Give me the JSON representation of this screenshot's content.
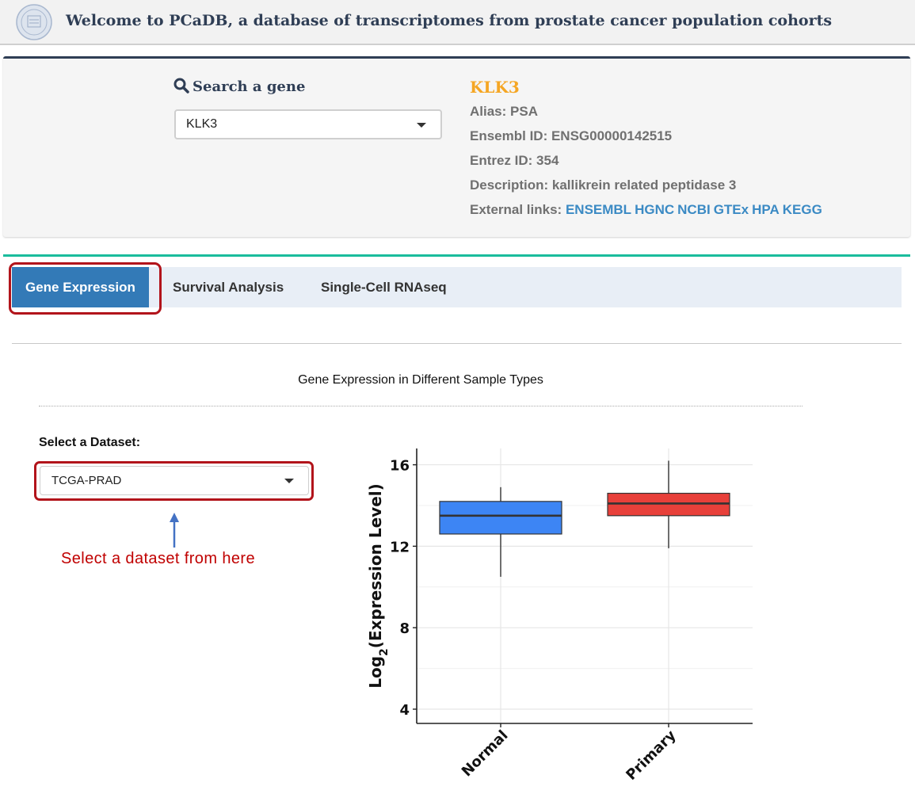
{
  "header": {
    "logo_icon": "university-seal-icon",
    "title": "Welcome to PCaDB, a database of transcriptomes from prostate cancer population cohorts"
  },
  "search": {
    "label": "Search a gene",
    "icon": "search-icon",
    "selected_gene": "KLK3"
  },
  "gene_info": {
    "name": "KLK3",
    "alias": "Alias: PSA",
    "ensembl_id": "Ensembl ID: ENSG00000142515",
    "entrez_id": "Entrez ID: 354",
    "description": "Description: kallikrein related peptidase 3",
    "links_label": "External links:",
    "links": [
      "ENSEMBL",
      "HGNC",
      "NCBI",
      "GTEx",
      "HPA",
      "KEGG"
    ]
  },
  "tabs": [
    {
      "label": "Gene Expression",
      "active": true
    },
    {
      "label": "Survival Analysis",
      "active": false
    },
    {
      "label": "Single-Cell RNAseq",
      "active": false
    }
  ],
  "section": {
    "title": "Gene Expression in Different Sample Types",
    "dataset_label": "Select a Dataset:",
    "dataset_value": "TCGA-PRAD",
    "annotation": "Select a dataset from here"
  },
  "colors": {
    "accent_orange": "#f5a623",
    "tab_active": "#337ab7",
    "highlight_red": "#b2141b",
    "normal_box": "#3d85f4",
    "primary_box": "#e8403a"
  },
  "chart_data": {
    "type": "box",
    "title": "",
    "xlabel": "",
    "ylabel": "Log2(Expression Level)",
    "ylim": [
      3.3,
      16.8
    ],
    "yticks": [
      4,
      8,
      12,
      16
    ],
    "categories": [
      "Normal",
      "Primary"
    ],
    "boxes": [
      {
        "category": "Normal",
        "whisker_low": 10.5,
        "q1": 12.6,
        "median": 13.5,
        "q3": 14.2,
        "whisker_high": 14.9,
        "color": "#3d85f4"
      },
      {
        "category": "Primary",
        "whisker_low": 11.9,
        "q1": 13.5,
        "median": 14.1,
        "q3": 14.6,
        "whisker_high": 16.2,
        "color": "#e8403a"
      }
    ]
  }
}
